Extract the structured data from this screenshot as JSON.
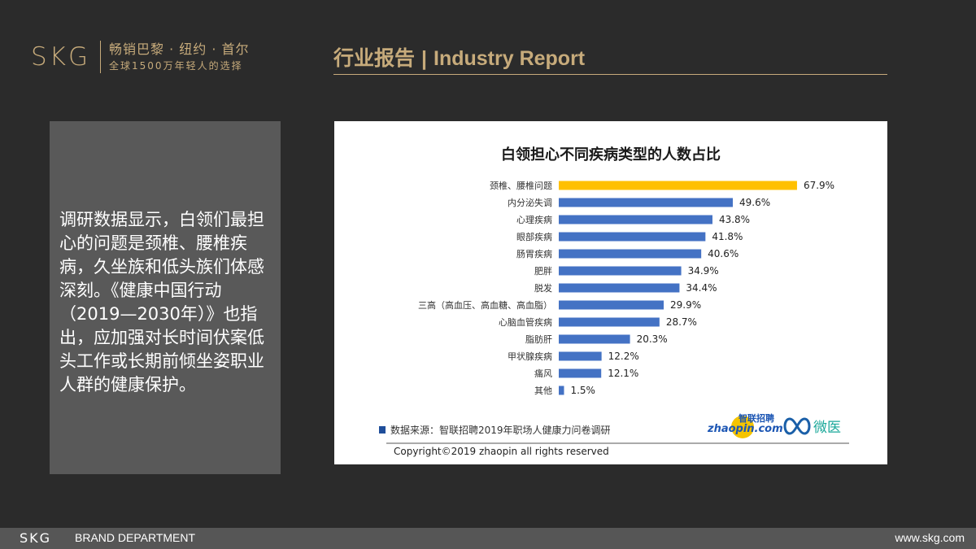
{
  "header": {
    "logo": "SKG",
    "slogan_line1": "畅销巴黎 · 纽约 · 首尔",
    "slogan_line2": "全球1500万年轻人的选择",
    "section_cn": "行业报告",
    "separator": "|",
    "section_en": "Industry Report"
  },
  "panel": {
    "text": "调研数据显示，白领们最担心的问题是颈椎、腰椎疾病，久坐族和低头族们体感深刻。《健康中国行动（2019—2030年）》也指出，应加强对长时间伏案低头工作或长期前倾坐姿职业人群的健康保护。"
  },
  "chart_data": {
    "type": "bar",
    "orientation": "horizontal",
    "title": "白领担心不同疾病类型的人数占比",
    "categories": [
      "颈椎、腰椎问题",
      "内分泌失调",
      "心理疾病",
      "眼部疾病",
      "肠胃疾病",
      "肥胖",
      "脱发",
      "三高（高血压、高血糖、高血脂）",
      "心脑血管疾病",
      "脂肪肝",
      "甲状腺疾病",
      "痛风",
      "其他"
    ],
    "values": [
      67.9,
      49.6,
      43.8,
      41.8,
      40.6,
      34.9,
      34.4,
      29.9,
      28.7,
      20.3,
      12.2,
      12.1,
      1.5
    ],
    "value_labels": [
      "67.9%",
      "49.6%",
      "43.8%",
      "41.8%",
      "40.6%",
      "34.9%",
      "34.4%",
      "29.9%",
      "28.7%",
      "20.3%",
      "12.2%",
      "12.1%",
      "1.5%"
    ],
    "highlight_index": 0,
    "colors": {
      "bar": "#4472c4",
      "highlight": "#ffc000"
    },
    "xlim": [
      0,
      70
    ],
    "grid": false,
    "source": "数据来源：智联招聘2019年职场人健康力问卷调研",
    "copyright": "Copyright©2019 zhaopin all rights reserved",
    "logos": {
      "zhaopin_cn": "智联招聘",
      "zhaopin_en": "zhaopin.com",
      "weiyi": "微医"
    }
  },
  "footer": {
    "logo": "SKG",
    "department": "BRAND DEPARTMENT",
    "url": "www.skg.com"
  },
  "colors": {
    "gold": "#c7ab7b",
    "background": "#2b2b2b",
    "panel": "#595959",
    "footer": "#565656"
  }
}
